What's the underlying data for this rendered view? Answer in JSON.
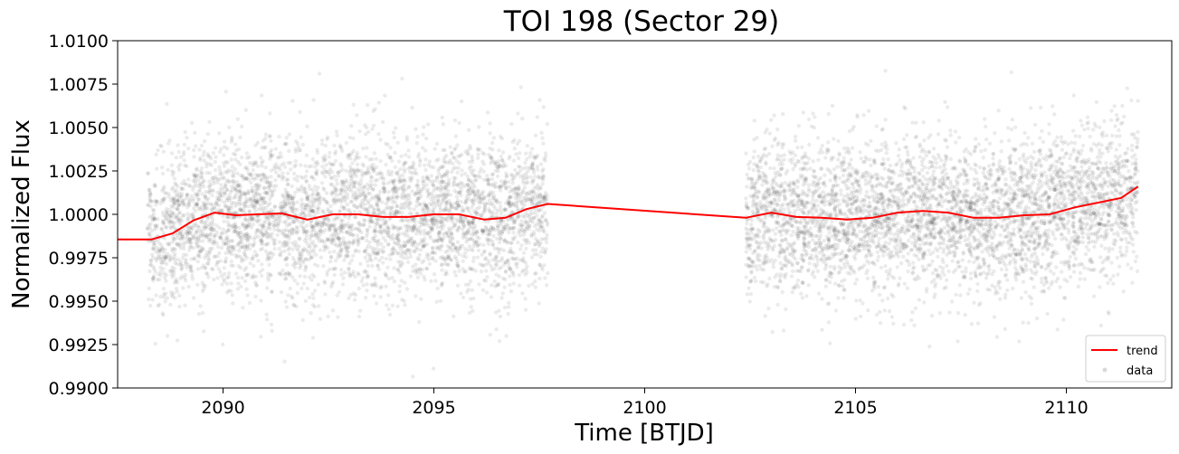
{
  "chart_data": {
    "type": "scatter",
    "title": "TOI 198 (Sector 29)",
    "xlabel": "Time [BTJD]",
    "ylabel": "Normalized Flux",
    "xlim": [
      2087.5,
      2112.5
    ],
    "ylim": [
      0.99,
      1.01
    ],
    "xticks": [
      2090,
      2095,
      2100,
      2105,
      2110
    ],
    "xtick_labels": [
      "2090",
      "2095",
      "2100",
      "2105",
      "2110"
    ],
    "yticks": [
      0.99,
      0.9925,
      0.995,
      0.9975,
      1.0,
      1.0025,
      1.005,
      1.0075,
      1.01
    ],
    "ytick_labels": [
      "0.9900",
      "0.9925",
      "0.9950",
      "0.9975",
      "1.0000",
      "1.0025",
      "1.0050",
      "1.0075",
      "1.0100"
    ],
    "grid": false,
    "legend_position": "lower-right",
    "series": [
      {
        "name": "trend",
        "kind": "line",
        "color": "#ff0000",
        "x": [
          2087.5,
          2088.3,
          2088.8,
          2089.3,
          2089.8,
          2090.3,
          2090.8,
          2091.4,
          2092.0,
          2092.6,
          2093.2,
          2093.8,
          2094.4,
          2095.0,
          2095.6,
          2096.2,
          2096.7,
          2097.2,
          2097.7,
          2102.4,
          2103.0,
          2103.6,
          2104.2,
          2104.8,
          2105.4,
          2106.0,
          2106.6,
          2107.2,
          2107.8,
          2108.4,
          2109.0,
          2109.6,
          2110.2,
          2110.8,
          2111.3,
          2111.7
        ],
        "y": [
          0.99855,
          0.99855,
          0.9989,
          0.99965,
          1.0001,
          0.99995,
          1.0,
          1.00005,
          0.9997,
          1.0,
          1.0,
          0.99985,
          0.99985,
          1.0,
          1.0,
          0.9997,
          0.9998,
          1.0003,
          1.0006,
          0.9998,
          1.0001,
          0.99985,
          0.9998,
          0.9997,
          0.9998,
          1.0001,
          1.0002,
          1.0001,
          0.9998,
          0.9998,
          0.99995,
          1.0,
          1.0004,
          1.0007,
          1.00095,
          1.0016
        ]
      },
      {
        "name": "data",
        "kind": "scatter",
        "color": "#000000",
        "opacity": 0.08,
        "segments": [
          [
            2088.2,
            2097.7
          ],
          [
            2102.4,
            2111.7
          ]
        ],
        "center": 1.0,
        "scatter_sigma": 0.0022
      }
    ]
  }
}
